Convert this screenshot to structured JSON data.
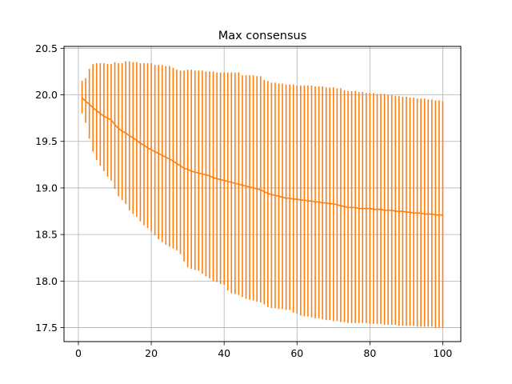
{
  "chart_data": {
    "type": "line",
    "title": "Max consensus",
    "xlabel": "",
    "ylabel": "",
    "xlim": [
      -3.95,
      104.95
    ],
    "ylim": [
      17.35,
      20.52
    ],
    "grid": true,
    "legend": "none",
    "x_ticks": [
      0,
      20,
      40,
      60,
      80,
      100
    ],
    "x_tick_labels": [
      "0",
      "20",
      "40",
      "60",
      "80",
      "100"
    ],
    "y_ticks": [
      17.5,
      18.0,
      18.5,
      19.0,
      19.5,
      20.0,
      20.5
    ],
    "y_tick_labels": [
      "17.5",
      "18.0",
      "18.5",
      "19.0",
      "19.5",
      "20.0",
      "20.5"
    ],
    "color": "#ff7f0e",
    "series": [
      {
        "x_start": 1,
        "x_end": 100,
        "x_step": 1,
        "mean": [
          19.97,
          19.93,
          19.9,
          19.86,
          19.83,
          19.8,
          19.77,
          19.75,
          19.73,
          19.68,
          19.64,
          19.61,
          19.59,
          19.56,
          19.54,
          19.51,
          19.48,
          19.46,
          19.43,
          19.41,
          19.39,
          19.37,
          19.35,
          19.33,
          19.31,
          19.29,
          19.26,
          19.24,
          19.21,
          19.2,
          19.18,
          19.17,
          19.16,
          19.15,
          19.14,
          19.13,
          19.11,
          19.1,
          19.09,
          19.08,
          19.07,
          19.06,
          19.05,
          19.04,
          19.03,
          19.02,
          19.01,
          19.0,
          18.99,
          18.98,
          18.96,
          18.94,
          18.93,
          18.92,
          18.91,
          18.9,
          18.89,
          18.89,
          18.88,
          18.88,
          18.87,
          18.87,
          18.86,
          18.86,
          18.85,
          18.85,
          18.84,
          18.84,
          18.83,
          18.83,
          18.82,
          18.81,
          18.8,
          18.79,
          18.79,
          18.79,
          18.78,
          18.78,
          18.78,
          18.78,
          18.77,
          18.77,
          18.77,
          18.76,
          18.76,
          18.76,
          18.75,
          18.75,
          18.75,
          18.74,
          18.74,
          18.73,
          18.73,
          18.73,
          18.72,
          18.72,
          18.72,
          18.71,
          18.71,
          18.71
        ],
        "upper": [
          20.15,
          20.18,
          20.28,
          20.33,
          20.34,
          20.34,
          20.34,
          20.33,
          20.33,
          20.35,
          20.34,
          20.34,
          20.36,
          20.36,
          20.35,
          20.35,
          20.34,
          20.34,
          20.34,
          20.34,
          20.32,
          20.32,
          20.32,
          20.31,
          20.31,
          20.29,
          20.27,
          20.26,
          20.26,
          20.27,
          20.27,
          20.26,
          20.26,
          20.26,
          20.25,
          20.25,
          20.25,
          20.24,
          20.24,
          20.24,
          20.24,
          20.24,
          20.24,
          20.24,
          20.21,
          20.21,
          20.21,
          20.21,
          20.2,
          20.2,
          20.16,
          20.15,
          20.13,
          20.13,
          20.12,
          20.12,
          20.11,
          20.11,
          20.11,
          20.1,
          20.1,
          20.1,
          20.1,
          20.1,
          20.09,
          20.09,
          20.09,
          20.08,
          20.08,
          20.08,
          20.07,
          20.07,
          20.05,
          20.04,
          20.04,
          20.04,
          20.03,
          20.03,
          20.02,
          20.02,
          20.02,
          20.01,
          20.01,
          20.01,
          20.0,
          20.0,
          19.99,
          19.99,
          19.98,
          19.98,
          19.97,
          19.97,
          19.96,
          19.96,
          19.96,
          19.95,
          19.95,
          19.94,
          19.94,
          19.93
        ],
        "lower": [
          19.8,
          19.7,
          19.53,
          19.39,
          19.3,
          19.24,
          19.18,
          19.12,
          19.08,
          18.99,
          18.91,
          18.87,
          18.83,
          18.76,
          18.72,
          18.69,
          18.64,
          18.6,
          18.57,
          18.53,
          18.49,
          18.45,
          18.42,
          18.39,
          18.37,
          18.35,
          18.33,
          18.29,
          18.21,
          18.15,
          18.13,
          18.12,
          18.11,
          18.08,
          18.05,
          18.03,
          18.0,
          17.99,
          17.97,
          17.96,
          17.9,
          17.87,
          17.86,
          17.85,
          17.83,
          17.81,
          17.8,
          17.79,
          17.78,
          17.77,
          17.75,
          17.72,
          17.71,
          17.71,
          17.7,
          17.7,
          17.69,
          17.69,
          17.66,
          17.65,
          17.63,
          17.62,
          17.62,
          17.61,
          17.6,
          17.6,
          17.59,
          17.58,
          17.58,
          17.57,
          17.57,
          17.56,
          17.56,
          17.55,
          17.55,
          17.55,
          17.55,
          17.55,
          17.55,
          17.54,
          17.54,
          17.54,
          17.54,
          17.53,
          17.53,
          17.53,
          17.53,
          17.52,
          17.52,
          17.52,
          17.52,
          17.52,
          17.51,
          17.51,
          17.51,
          17.51,
          17.51,
          17.5,
          17.5,
          17.5
        ]
      }
    ]
  }
}
